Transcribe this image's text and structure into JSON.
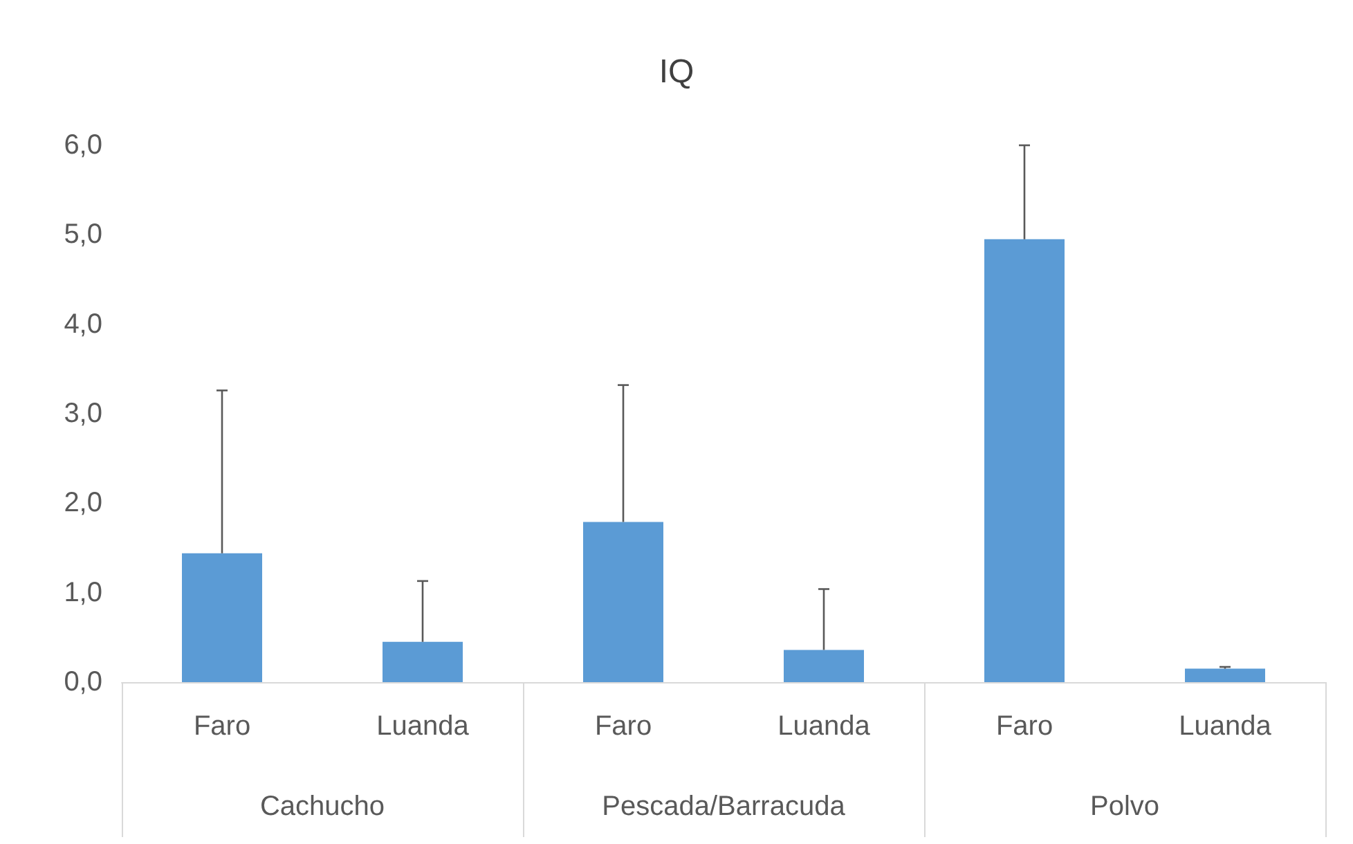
{
  "chart_data": {
    "type": "bar",
    "title": "IQ",
    "categories": [
      "Faro",
      "Luanda",
      "Faro",
      "Luanda",
      "Faro",
      "Luanda"
    ],
    "annotations": [
      "Cachucho",
      "Pescada/Barracuda",
      "Polvo"
    ],
    "values": [
      1.44,
      0.45,
      1.79,
      0.36,
      4.95,
      0.15
    ],
    "errors": [
      [
        1.44,
        3.26
      ],
      [
        0.45,
        1.13
      ],
      [
        1.79,
        3.32
      ],
      [
        0.36,
        1.04
      ],
      [
        4.95,
        6.0
      ],
      [
        0.15,
        0.17
      ]
    ],
    "color": "#5b9bd5",
    "ylim": [
      0,
      6
    ],
    "yticks": [
      {
        "value": 0,
        "label": "0,0"
      },
      {
        "value": 1,
        "label": "1,0"
      },
      {
        "value": 2,
        "label": "2,0"
      },
      {
        "value": 3,
        "label": "3,0"
      },
      {
        "value": 4,
        "label": "4,0"
      },
      {
        "value": 5,
        "label": "5,0"
      },
      {
        "value": 6,
        "label": "6,0"
      }
    ],
    "grid": false
  }
}
